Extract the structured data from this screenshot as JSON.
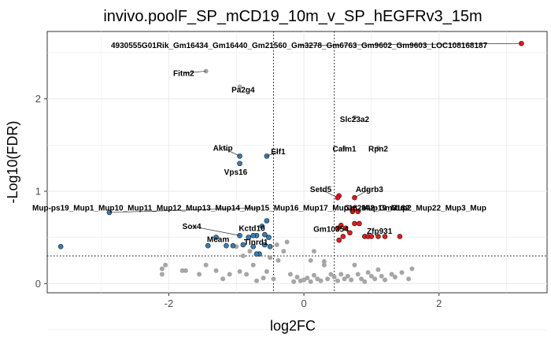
{
  "chart_data": {
    "type": "scatter",
    "title": "invivo.poolF_SP_mCD19_10m_v_SP_hEGFRv3_15m",
    "xlabel": "log2FC",
    "ylabel": "-Log10(FDR)",
    "xlim": [
      -3.8,
      3.6
    ],
    "ylim": [
      -0.1,
      2.73
    ],
    "xticks": [
      -2,
      0,
      2
    ],
    "yticks": [
      0,
      1,
      2
    ],
    "xtick_labels": [
      "-2",
      "0",
      "2"
    ],
    "ytick_labels": [
      "0",
      "1",
      "2"
    ],
    "thresholds": {
      "log2fc": [
        -0.45,
        0.45
      ],
      "fdr_line": 0.3
    },
    "grid": true,
    "legend": "none",
    "colors": {
      "up": "#e41a1c",
      "down": "#377eb8",
      "ns": "#a6a6a6",
      "grid": "#ebebeb"
    },
    "labeled_points": [
      {
        "label": "4930555G01Rik_Gm16434_Gm16440_Gm21560_Gm3278_Gm6763_Gm9602_Gm9603_LOC108168187",
        "x": 3.22,
        "y": 2.6,
        "group": "up",
        "label_x": -0.07,
        "label_y": 2.58
      },
      {
        "label": "Fitm2",
        "x": -1.45,
        "y": 2.3,
        "group": "ns",
        "label_x": -1.78,
        "label_y": 2.28
      },
      {
        "label": "Pa2g4",
        "x": -0.95,
        "y": 2.13,
        "group": "ns",
        "label_x": -0.9,
        "label_y": 2.1
      },
      {
        "label": "Slc23a2",
        "x": 0.75,
        "y": 1.8,
        "group": "ns",
        "label_x": 0.75,
        "label_y": 1.78
      },
      {
        "label": "Calm1",
        "x": 0.6,
        "y": 1.47,
        "group": "ns",
        "label_x": 0.6,
        "label_y": 1.46
      },
      {
        "label": "Rpn2",
        "x": 1.1,
        "y": 1.47,
        "group": "ns",
        "label_x": 1.1,
        "label_y": 1.46
      },
      {
        "label": "Aktip",
        "x": -0.95,
        "y": 1.38,
        "group": "down",
        "label_x": -1.2,
        "label_y": 1.47
      },
      {
        "label": "Elf1",
        "x": -0.55,
        "y": 1.38,
        "group": "down",
        "label_x": -0.38,
        "label_y": 1.43
      },
      {
        "label": "Vps16",
        "x": -0.95,
        "y": 1.3,
        "group": "down",
        "label_x": -1.01,
        "label_y": 1.21
      },
      {
        "label": "Setd5",
        "x": 0.5,
        "y": 0.93,
        "group": "up",
        "label_x": 0.25,
        "label_y": 1.02
      },
      {
        "label": "Adgrb3",
        "x": 0.75,
        "y": 0.93,
        "group": "up",
        "label_x": 0.97,
        "label_y": 1.02
      },
      {
        "label": "Mup-ps19_Mup1_Mup10_Mup11_Mup12_Mup13_Mup14_Mup15_Mup16_Mup17_Mup18_Mup19_Mup2_Mup22_Mup3_Mup",
        "x": -2.88,
        "y": 0.77,
        "group": "down",
        "label_x": -0.66,
        "label_y": 0.82
      },
      {
        "label": "Gm2942_Gm3182",
        "x": 0.72,
        "y": 0.8,
        "group": "up",
        "label_x": 1.08,
        "label_y": 0.82
      },
      {
        "label": "Sox4",
        "x": -0.95,
        "y": 0.52,
        "group": "down",
        "label_x": -1.66,
        "label_y": 0.62
      },
      {
        "label": "Kctd10",
        "x": -0.75,
        "y": 0.52,
        "group": "down",
        "label_x": -0.77,
        "label_y": 0.6
      },
      {
        "label": "Gm10354",
        "x": 0.5,
        "y": 0.6,
        "group": "up",
        "label_x": 0.4,
        "label_y": 0.59
      },
      {
        "label": "Zfp931",
        "x": 1.1,
        "y": 0.51,
        "group": "up",
        "label_x": 1.12,
        "label_y": 0.57
      },
      {
        "label": "Mcam",
        "x": -1.3,
        "y": 0.5,
        "group": "down",
        "label_x": -1.27,
        "label_y": 0.48
      },
      {
        "label": "Tlnrd1",
        "x": -0.75,
        "y": 0.4,
        "group": "down",
        "label_x": -0.71,
        "label_y": 0.45
      }
    ],
    "points_up": [
      [
        0.52,
        0.95
      ],
      [
        0.55,
        0.63
      ],
      [
        0.62,
        0.6
      ],
      [
        0.68,
        0.55
      ],
      [
        0.75,
        0.65
      ],
      [
        0.82,
        0.65
      ],
      [
        0.9,
        0.51
      ],
      [
        0.95,
        0.51
      ],
      [
        1.0,
        0.51
      ],
      [
        1.2,
        0.51
      ],
      [
        1.42,
        0.51
      ],
      [
        0.58,
        0.51
      ],
      [
        0.52,
        0.47
      ],
      [
        0.72,
        0.78
      ],
      [
        0.8,
        0.78
      ],
      [
        3.22,
        2.6
      ],
      [
        0.5,
        0.93
      ],
      [
        0.75,
        0.93
      ],
      [
        0.72,
        0.8
      ],
      [
        0.5,
        0.6
      ],
      [
        1.1,
        0.51
      ]
    ],
    "points_down": [
      [
        -0.95,
        1.38
      ],
      [
        -0.95,
        1.3
      ],
      [
        -0.55,
        1.38
      ],
      [
        -2.88,
        0.77
      ],
      [
        -3.6,
        0.4
      ],
      [
        -1.42,
        0.41
      ],
      [
        -1.15,
        0.41
      ],
      [
        -1.05,
        0.41
      ],
      [
        -0.9,
        0.42
      ],
      [
        -0.82,
        0.5
      ],
      [
        -0.7,
        0.52
      ],
      [
        -0.58,
        0.53
      ],
      [
        -0.52,
        0.5
      ],
      [
        -0.5,
        0.4
      ],
      [
        -0.58,
        0.42
      ],
      [
        -0.62,
        0.62
      ],
      [
        -0.55,
        0.68
      ],
      [
        -0.66,
        0.32
      ],
      [
        -0.7,
        0.32
      ],
      [
        -0.95,
        0.52
      ],
      [
        -0.75,
        0.52
      ],
      [
        -1.3,
        0.5
      ],
      [
        -0.75,
        0.4
      ]
    ],
    "points_ns": [
      [
        -2.1,
        0.16
      ],
      [
        -2.05,
        0.2
      ],
      [
        -2.1,
        0.1
      ],
      [
        -1.8,
        0.14
      ],
      [
        -1.75,
        0.14
      ],
      [
        -1.55,
        0.1
      ],
      [
        -1.45,
        0.2
      ],
      [
        -1.3,
        0.14
      ],
      [
        -1.2,
        0.05
      ],
      [
        -1.1,
        0.1
      ],
      [
        -0.95,
        0.13
      ],
      [
        -0.85,
        0.1
      ],
      [
        -0.75,
        0.2
      ],
      [
        -0.7,
        0.03
      ],
      [
        -0.6,
        0.06
      ],
      [
        -0.55,
        0.13
      ],
      [
        -0.45,
        0.05
      ],
      [
        -0.38,
        0.25
      ],
      [
        -0.3,
        0.35
      ],
      [
        -0.25,
        0.45
      ],
      [
        -0.2,
        0.1
      ],
      [
        -0.15,
        0.02
      ],
      [
        -0.1,
        0.07
      ],
      [
        -0.05,
        0.03
      ],
      [
        0.0,
        0.04
      ],
      [
        0.05,
        0.06
      ],
      [
        0.1,
        0.02
      ],
      [
        0.15,
        0.09
      ],
      [
        0.2,
        0.05
      ],
      [
        0.25,
        0.03
      ],
      [
        0.3,
        0.24
      ],
      [
        0.35,
        0.05
      ],
      [
        0.4,
        0.1
      ],
      [
        0.45,
        0.07
      ],
      [
        0.5,
        0.03
      ],
      [
        0.55,
        0.1
      ],
      [
        0.6,
        0.05
      ],
      [
        0.65,
        0.08
      ],
      [
        0.7,
        0.04
      ],
      [
        0.75,
        0.2
      ],
      [
        0.8,
        0.1
      ],
      [
        0.85,
        0.05
      ],
      [
        0.9,
        0.02
      ],
      [
        0.95,
        0.12
      ],
      [
        1.0,
        0.08
      ],
      [
        1.05,
        0.05
      ],
      [
        1.1,
        0.15
      ],
      [
        1.15,
        0.08
      ],
      [
        1.2,
        0.04
      ],
      [
        1.3,
        0.1
      ],
      [
        1.35,
        0.07
      ],
      [
        1.45,
        0.12
      ],
      [
        1.55,
        0.05
      ],
      [
        1.6,
        0.16
      ],
      [
        -1.0,
        0.4
      ],
      [
        -0.9,
        0.3
      ],
      [
        -0.8,
        0.35
      ],
      [
        -0.5,
        0.28
      ],
      [
        -0.4,
        0.42
      ],
      [
        0.1,
        0.25
      ],
      [
        0.15,
        0.35
      ],
      [
        0.3,
        0.2
      ],
      [
        -1.45,
        2.3
      ],
      [
        -0.95,
        2.13
      ],
      [
        0.75,
        1.8
      ],
      [
        0.6,
        1.47
      ],
      [
        1.1,
        1.47
      ]
    ]
  }
}
